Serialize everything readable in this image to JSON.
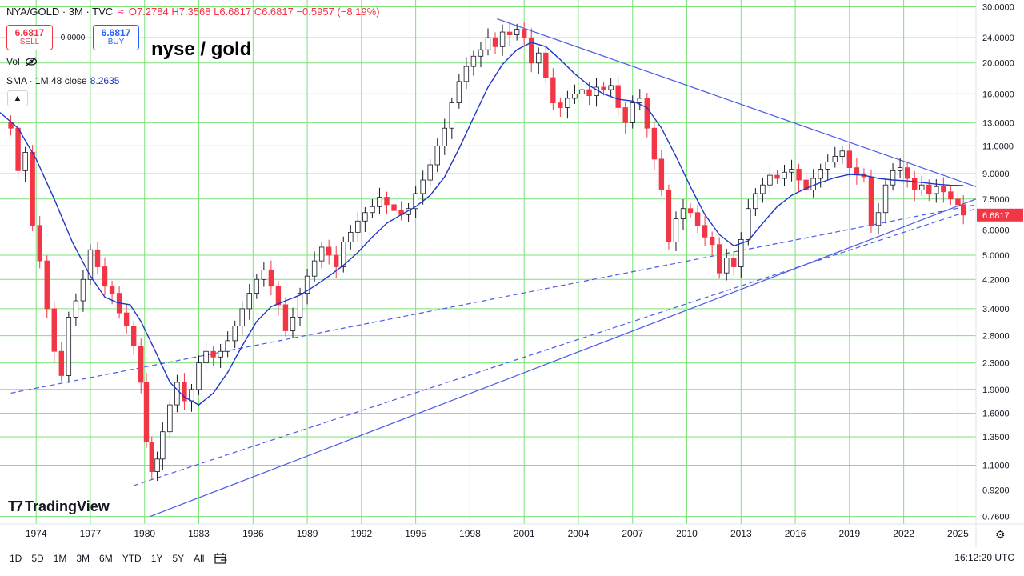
{
  "header": {
    "symbol": "NYA/GOLD · 3M · TVC",
    "indicator_icon": "wave-icon",
    "ohlc": "O7.2784 H7.3568 L6.6817 C6.6817 −0.5957 (−8.19%)"
  },
  "trade": {
    "sell_price": "6.6817",
    "sell_label": "SELL",
    "spread": "0.0000",
    "buy_price": "6.6817",
    "buy_label": "BUY"
  },
  "annotation": "nyse / gold",
  "vol_label": "Vol",
  "sma": {
    "label": "SMA · 1M 48 close",
    "value": "8.2635"
  },
  "logo": "TradingView",
  "ranges": [
    "1D",
    "5D",
    "1M",
    "3M",
    "6M",
    "YTD",
    "1Y",
    "5Y",
    "All"
  ],
  "time": "16:12:20 UTC",
  "colors": {
    "up": "#787b86",
    "down": "#f23645",
    "sma": "#1f36c7",
    "trend": "#4a5be8",
    "grid": "#7ee27a",
    "price_tag": "#f23645"
  },
  "chart_data": {
    "type": "candlestick",
    "scale": "log",
    "grid": true,
    "y_ticks": [
      30.0,
      24.0,
      20.0,
      16.0,
      13.0,
      11.0,
      9.0,
      7.5,
      6.0,
      5.0,
      4.2,
      3.4,
      2.8,
      2.3,
      1.9,
      1.6,
      1.35,
      1.1,
      0.92,
      0.76
    ],
    "y_tick_labels": [
      "30.0000",
      "24.0000",
      "20.0000",
      "16.0000",
      "13.0000",
      "11.0000",
      "9.0000",
      "7.5000",
      "6.0000",
      "5.0000",
      "4.2000",
      "3.4000",
      "2.8000",
      "2.3000",
      "1.9000",
      "1.6000",
      "1.3500",
      "1.1000",
      "0.9200",
      "0.7600"
    ],
    "x_ticks": [
      1974,
      1977,
      1980,
      1983,
      1986,
      1989,
      1992,
      1995,
      1998,
      2001,
      2004,
      2007,
      2010,
      2013,
      2016,
      2019,
      2022,
      2025
    ],
    "x_range": [
      1972.0,
      2026.0
    ],
    "y_range": [
      0.72,
      31.5
    ],
    "last_price": "6.6817",
    "close_path": [
      [
        1972.2,
        13.0
      ],
      [
        1972.6,
        12.5
      ],
      [
        1973.0,
        9.2
      ],
      [
        1973.4,
        10.5
      ],
      [
        1973.8,
        6.2
      ],
      [
        1974.2,
        4.8
      ],
      [
        1974.6,
        3.4
      ],
      [
        1975.0,
        2.5
      ],
      [
        1975.4,
        2.1
      ],
      [
        1975.8,
        3.2
      ],
      [
        1976.2,
        3.6
      ],
      [
        1976.6,
        4.2
      ],
      [
        1977.0,
        5.2
      ],
      [
        1977.4,
        4.6
      ],
      [
        1977.8,
        4.0
      ],
      [
        1978.2,
        3.8
      ],
      [
        1978.6,
        3.3
      ],
      [
        1979.0,
        3.0
      ],
      [
        1979.4,
        2.6
      ],
      [
        1979.8,
        2.0
      ],
      [
        1980.1,
        1.3
      ],
      [
        1980.4,
        1.05
      ],
      [
        1980.7,
        1.15
      ],
      [
        1981.0,
        1.4
      ],
      [
        1981.4,
        1.7
      ],
      [
        1981.8,
        2.0
      ],
      [
        1982.2,
        1.75
      ],
      [
        1982.6,
        1.9
      ],
      [
        1983.0,
        2.3
      ],
      [
        1983.4,
        2.5
      ],
      [
        1983.8,
        2.4
      ],
      [
        1984.2,
        2.5
      ],
      [
        1984.6,
        2.7
      ],
      [
        1985.0,
        3.0
      ],
      [
        1985.4,
        3.4
      ],
      [
        1985.8,
        3.8
      ],
      [
        1986.2,
        4.2
      ],
      [
        1986.6,
        4.5
      ],
      [
        1987.0,
        4.0
      ],
      [
        1987.4,
        3.5
      ],
      [
        1987.8,
        2.9
      ],
      [
        1988.2,
        3.2
      ],
      [
        1988.6,
        3.8
      ],
      [
        1989.0,
        4.3
      ],
      [
        1989.4,
        4.8
      ],
      [
        1989.8,
        5.3
      ],
      [
        1990.2,
        5.0
      ],
      [
        1990.6,
        4.6
      ],
      [
        1991.0,
        5.5
      ],
      [
        1991.4,
        5.9
      ],
      [
        1991.8,
        6.4
      ],
      [
        1992.2,
        6.8
      ],
      [
        1992.6,
        7.1
      ],
      [
        1993.0,
        7.6
      ],
      [
        1993.4,
        7.2
      ],
      [
        1993.8,
        6.9
      ],
      [
        1994.2,
        6.7
      ],
      [
        1994.6,
        7.0
      ],
      [
        1995.0,
        7.8
      ],
      [
        1995.4,
        8.6
      ],
      [
        1995.8,
        9.6
      ],
      [
        1996.2,
        11.0
      ],
      [
        1996.6,
        12.5
      ],
      [
        1997.0,
        15.0
      ],
      [
        1997.4,
        17.5
      ],
      [
        1997.8,
        19.5
      ],
      [
        1998.2,
        21.0
      ],
      [
        1998.6,
        22.0
      ],
      [
        1999.0,
        24.0
      ],
      [
        1999.4,
        22.5
      ],
      [
        1999.8,
        25.0
      ],
      [
        2000.2,
        24.5
      ],
      [
        2000.6,
        25.5
      ],
      [
        2001.0,
        24.0
      ],
      [
        2001.4,
        20.0
      ],
      [
        2001.8,
        21.5
      ],
      [
        2002.2,
        18.0
      ],
      [
        2002.6,
        15.0
      ],
      [
        2003.0,
        14.5
      ],
      [
        2003.4,
        15.5
      ],
      [
        2003.8,
        16.0
      ],
      [
        2004.2,
        16.5
      ],
      [
        2004.6,
        15.8
      ],
      [
        2005.0,
        16.8
      ],
      [
        2005.4,
        16.5
      ],
      [
        2005.8,
        17.0
      ],
      [
        2006.2,
        14.5
      ],
      [
        2006.6,
        13.0
      ],
      [
        2007.0,
        15.0
      ],
      [
        2007.4,
        15.5
      ],
      [
        2007.8,
        12.5
      ],
      [
        2008.2,
        10.0
      ],
      [
        2008.6,
        8.0
      ],
      [
        2009.0,
        5.5
      ],
      [
        2009.4,
        6.5
      ],
      [
        2009.8,
        7.0
      ],
      [
        2010.2,
        6.8
      ],
      [
        2010.6,
        6.2
      ],
      [
        2011.0,
        5.7
      ],
      [
        2011.4,
        5.4
      ],
      [
        2011.8,
        4.4
      ],
      [
        2012.2,
        4.9
      ],
      [
        2012.6,
        4.6
      ],
      [
        2013.0,
        5.6
      ],
      [
        2013.4,
        7.0
      ],
      [
        2013.8,
        7.8
      ],
      [
        2014.2,
        8.3
      ],
      [
        2014.6,
        8.9
      ],
      [
        2015.0,
        8.7
      ],
      [
        2015.4,
        9.1
      ],
      [
        2015.8,
        9.3
      ],
      [
        2016.2,
        8.6
      ],
      [
        2016.6,
        8.0
      ],
      [
        2017.0,
        8.7
      ],
      [
        2017.4,
        9.3
      ],
      [
        2017.8,
        9.8
      ],
      [
        2018.2,
        10.2
      ],
      [
        2018.6,
        10.6
      ],
      [
        2019.0,
        9.4
      ],
      [
        2019.4,
        9.0
      ],
      [
        2019.8,
        8.8
      ],
      [
        2020.2,
        6.2
      ],
      [
        2020.6,
        6.8
      ],
      [
        2021.0,
        8.3
      ],
      [
        2021.4,
        9.2
      ],
      [
        2021.8,
        9.4
      ],
      [
        2022.2,
        8.7
      ],
      [
        2022.6,
        8.0
      ],
      [
        2023.0,
        8.3
      ],
      [
        2023.4,
        7.8
      ],
      [
        2023.8,
        8.2
      ],
      [
        2024.2,
        7.9
      ],
      [
        2024.6,
        7.5
      ],
      [
        2025.0,
        7.2
      ],
      [
        2025.3,
        6.68
      ]
    ],
    "sma_path": [
      [
        1972.0,
        14.0
      ],
      [
        1973.0,
        12.5
      ],
      [
        1974.0,
        10.0
      ],
      [
        1975.0,
        7.5
      ],
      [
        1976.0,
        5.5
      ],
      [
        1977.0,
        4.3
      ],
      [
        1977.8,
        3.7
      ],
      [
        1978.5,
        3.55
      ],
      [
        1979.2,
        3.5
      ],
      [
        1979.8,
        3.1
      ],
      [
        1980.6,
        2.5
      ],
      [
        1981.4,
        2.0
      ],
      [
        1982.2,
        1.8
      ],
      [
        1983.0,
        1.7
      ],
      [
        1983.8,
        1.85
      ],
      [
        1984.6,
        2.15
      ],
      [
        1985.4,
        2.6
      ],
      [
        1986.2,
        3.1
      ],
      [
        1987.0,
        3.45
      ],
      [
        1987.8,
        3.6
      ],
      [
        1988.6,
        3.75
      ],
      [
        1989.4,
        4.0
      ],
      [
        1990.2,
        4.3
      ],
      [
        1991.0,
        4.65
      ],
      [
        1991.8,
        5.1
      ],
      [
        1992.6,
        5.7
      ],
      [
        1993.4,
        6.3
      ],
      [
        1994.2,
        6.7
      ],
      [
        1995.0,
        7.1
      ],
      [
        1995.8,
        7.7
      ],
      [
        1996.6,
        8.8
      ],
      [
        1997.4,
        10.8
      ],
      [
        1998.2,
        13.5
      ],
      [
        1999.0,
        16.8
      ],
      [
        1999.8,
        19.8
      ],
      [
        2000.6,
        22.0
      ],
      [
        2001.4,
        23.2
      ],
      [
        2002.2,
        22.5
      ],
      [
        2003.0,
        20.5
      ],
      [
        2003.8,
        18.5
      ],
      [
        2004.6,
        17.0
      ],
      [
        2005.4,
        16.0
      ],
      [
        2006.2,
        15.4
      ],
      [
        2007.0,
        15.2
      ],
      [
        2007.8,
        14.5
      ],
      [
        2008.6,
        12.5
      ],
      [
        2009.4,
        10.2
      ],
      [
        2010.2,
        8.2
      ],
      [
        2011.0,
        6.7
      ],
      [
        2011.8,
        5.8
      ],
      [
        2012.6,
        5.35
      ],
      [
        2013.4,
        5.55
      ],
      [
        2014.2,
        6.3
      ],
      [
        2015.0,
        7.1
      ],
      [
        2015.8,
        7.7
      ],
      [
        2016.6,
        8.1
      ],
      [
        2017.4,
        8.45
      ],
      [
        2018.2,
        8.75
      ],
      [
        2019.0,
        8.95
      ],
      [
        2019.8,
        8.9
      ],
      [
        2020.6,
        8.7
      ],
      [
        2021.4,
        8.6
      ],
      [
        2022.2,
        8.55
      ],
      [
        2023.0,
        8.45
      ],
      [
        2023.8,
        8.35
      ],
      [
        2024.6,
        8.28
      ],
      [
        2025.3,
        8.26
      ]
    ],
    "trendlines": [
      {
        "style": "solid",
        "x": [
          1999.5,
          2026.0
        ],
        "y": [
          27.5,
          8.2
        ]
      },
      {
        "style": "solid",
        "x": [
          1980.3,
          2026.0
        ],
        "y": [
          0.76,
          7.5
        ]
      },
      {
        "style": "dashed",
        "x": [
          1972.6,
          2026.0
        ],
        "y": [
          1.85,
          7.2
        ]
      },
      {
        "style": "dashed",
        "x": [
          1979.4,
          2026.0
        ],
        "y": [
          0.95,
          7.0
        ]
      }
    ]
  }
}
